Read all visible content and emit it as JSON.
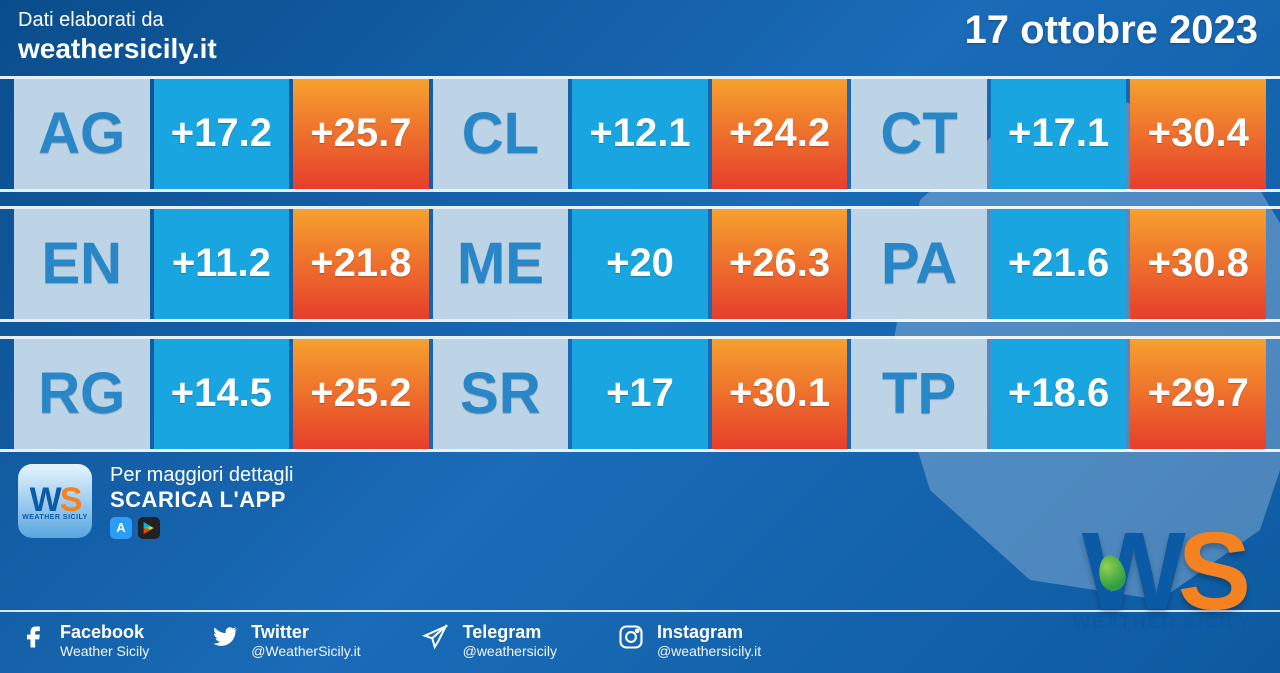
{
  "header": {
    "line1": "Dati elaborati da",
    "line2": "weathersicily.it",
    "date": "17 ottobre 2023"
  },
  "colors": {
    "code_bg": "#bcd4e6",
    "code_fg": "#2a87c7",
    "min_bg": "#19a6e0",
    "min_fg": "#ffffff",
    "max_bg_top": "#f6a12e",
    "max_bg_bottom": "#e63e2b",
    "max_fg": "#ffffff"
  },
  "rows": [
    [
      {
        "code": "AG",
        "min": "+17.2",
        "max": "+25.7"
      },
      {
        "code": "CL",
        "min": "+12.1",
        "max": "+24.2"
      },
      {
        "code": "CT",
        "min": "+17.1",
        "max": "+30.4"
      }
    ],
    [
      {
        "code": "EN",
        "min": "+11.2",
        "max": "+21.8"
      },
      {
        "code": "ME",
        "min": "+20",
        "max": "+26.3"
      },
      {
        "code": "PA",
        "min": "+21.6",
        "max": "+30.8"
      }
    ],
    [
      {
        "code": "RG",
        "min": "+14.5",
        "max": "+25.2"
      },
      {
        "code": "SR",
        "min": "+17",
        "max": "+30.1"
      },
      {
        "code": "TP",
        "min": "+18.6",
        "max": "+29.7"
      }
    ]
  ],
  "cta": {
    "line1": "Per maggiori dettagli",
    "line2": "SCARICA L'APP",
    "badge_text": "WEATHER SICILY"
  },
  "socials": [
    {
      "name": "Facebook",
      "handle": "Weather Sicily",
      "glyph": "f"
    },
    {
      "name": "Twitter",
      "handle": "@WeatherSicily.it",
      "glyph": "t"
    },
    {
      "name": "Telegram",
      "handle": "@weathersicily",
      "glyph": "tg"
    },
    {
      "name": "Instagram",
      "handle": "@weathersicily.it",
      "glyph": "ig"
    }
  ],
  "logo": {
    "tag": "WEATHER SICILY"
  }
}
